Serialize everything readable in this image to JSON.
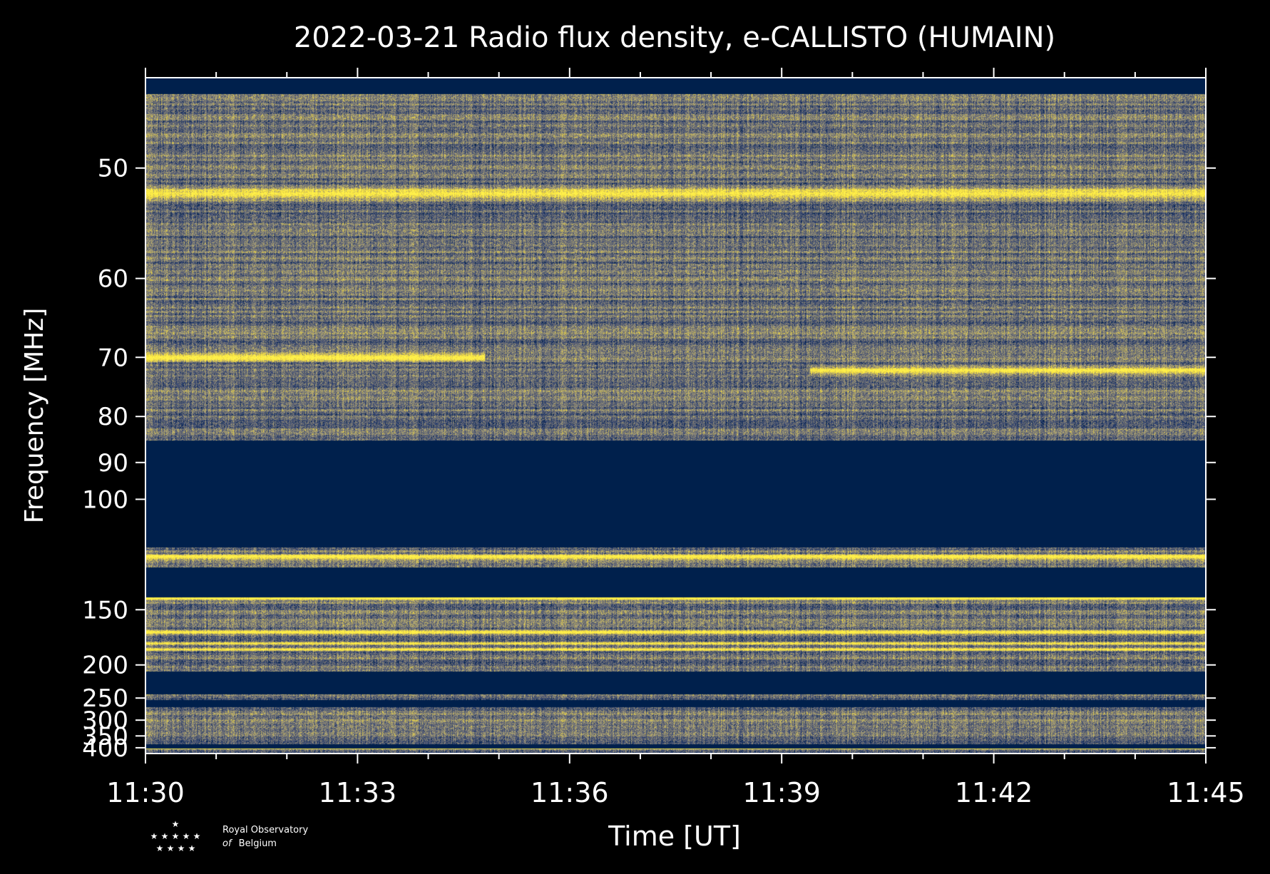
{
  "chart_data": {
    "type": "heatmap",
    "title": "2022-03-21 Radio flux density, e-CALLISTO (HUMAIN)",
    "xlabel": "Time [UT]",
    "ylabel": "Frequency [MHz]",
    "x_ticks": [
      "11:30",
      "11:33",
      "11:36",
      "11:39",
      "11:42",
      "11:45"
    ],
    "x_tick_values_min": [
      0,
      3,
      6,
      9,
      12,
      15
    ],
    "xlim_min": [
      0,
      15
    ],
    "y_ticks": [
      50,
      60,
      70,
      80,
      90,
      100,
      150,
      200,
      250,
      300,
      350,
      400
    ],
    "y_scale": "reciprocal",
    "ylim": [
      44,
      430
    ],
    "colormap": [
      "#00204c",
      "#3a4a76",
      "#6f6f71",
      "#a8a07a",
      "#e9d23f",
      "#fff04a"
    ],
    "background_value": "#00204c",
    "empty_bands_mhz": [
      [
        85,
        117
      ],
      [
        126,
        142
      ],
      [
        208,
        243
      ],
      [
        254,
        268
      ],
      [
        383,
        403
      ]
    ],
    "bright_bands": [
      {
        "freq_mhz": 52,
        "time_min": [
          0,
          15
        ]
      },
      {
        "freq_mhz": 70,
        "time_min": [
          0,
          4.8
        ]
      },
      {
        "freq_mhz": 72,
        "time_min": [
          9.4,
          15
        ]
      },
      {
        "freq_mhz": 121,
        "time_min": [
          0,
          15
        ]
      },
      {
        "freq_mhz": 142.5,
        "time_min": [
          0,
          15
        ]
      },
      {
        "freq_mhz": 167,
        "time_min": [
          0,
          15
        ]
      },
      {
        "freq_mhz": 177,
        "time_min": [
          0,
          15
        ]
      },
      {
        "freq_mhz": 183,
        "time_min": [
          0,
          15
        ]
      },
      {
        "freq_mhz": 405,
        "time_min": [
          0,
          15
        ]
      }
    ]
  },
  "logo": {
    "line1": "Royal Observatory",
    "line2_italic": "of",
    "line2": "Belgium"
  }
}
